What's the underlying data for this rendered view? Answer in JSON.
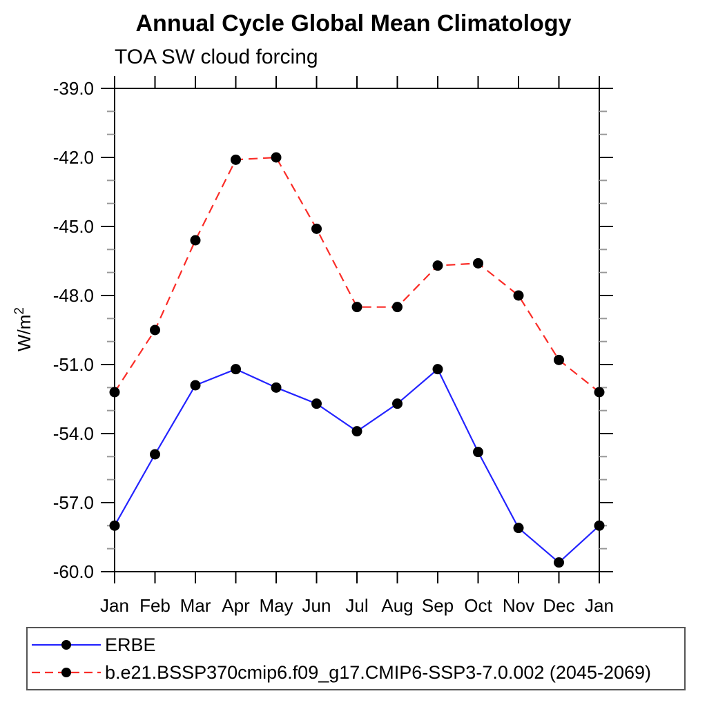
{
  "page": {
    "background": "#ffffff"
  },
  "chart": {
    "title": "Annual Cycle Global Mean Climatology",
    "subtitle": "TOA SW cloud forcing",
    "ylabel_base": "W/m",
    "ylabel_exponent": "2"
  },
  "chart_data": {
    "type": "line",
    "title": "Annual Cycle Global Mean Climatology",
    "subtitle": "TOA SW cloud forcing",
    "xlabel": "",
    "ylabel": "W/m2",
    "categories": [
      "Jan",
      "Feb",
      "Mar",
      "Apr",
      "May",
      "Jun",
      "Jul",
      "Aug",
      "Sep",
      "Oct",
      "Nov",
      "Dec",
      "Jan"
    ],
    "ylim": [
      -60,
      -39
    ],
    "y_major_ticks": [
      -39,
      -42,
      -45,
      -48,
      -51,
      -54,
      -57,
      -60
    ],
    "y_tick_labels": [
      "-39.0",
      "-42.0",
      "-45.0",
      "-48.0",
      "-51.0",
      "-54.0",
      "-57.0",
      "-60.0"
    ],
    "y_minor_step": 1,
    "grid": false,
    "legend_position": "bottom",
    "axis_color": "#000000",
    "minor_tick_color": "#999999",
    "marker_color": "#000000",
    "series": [
      {
        "name": "ERBE",
        "color": "#2323ff",
        "line_style": "solid",
        "marker": "circle",
        "values": [
          -58.0,
          -54.9,
          -51.9,
          -51.2,
          -52.0,
          -52.7,
          -53.9,
          -52.7,
          -51.2,
          -54.8,
          -58.1,
          -59.6,
          -58.0
        ]
      },
      {
        "name": "b.e21.BSSP370cmip6.f09_g17.CMIP6-SSP3-7.0.002 (2045-2069)",
        "color": "#fa2d28",
        "line_style": "dashed",
        "marker": "circle",
        "values": [
          -52.2,
          -49.5,
          -45.6,
          -42.1,
          -42.0,
          -45.1,
          -48.5,
          -48.5,
          -46.7,
          -46.6,
          -48.0,
          -50.8,
          -52.2
        ]
      }
    ]
  }
}
